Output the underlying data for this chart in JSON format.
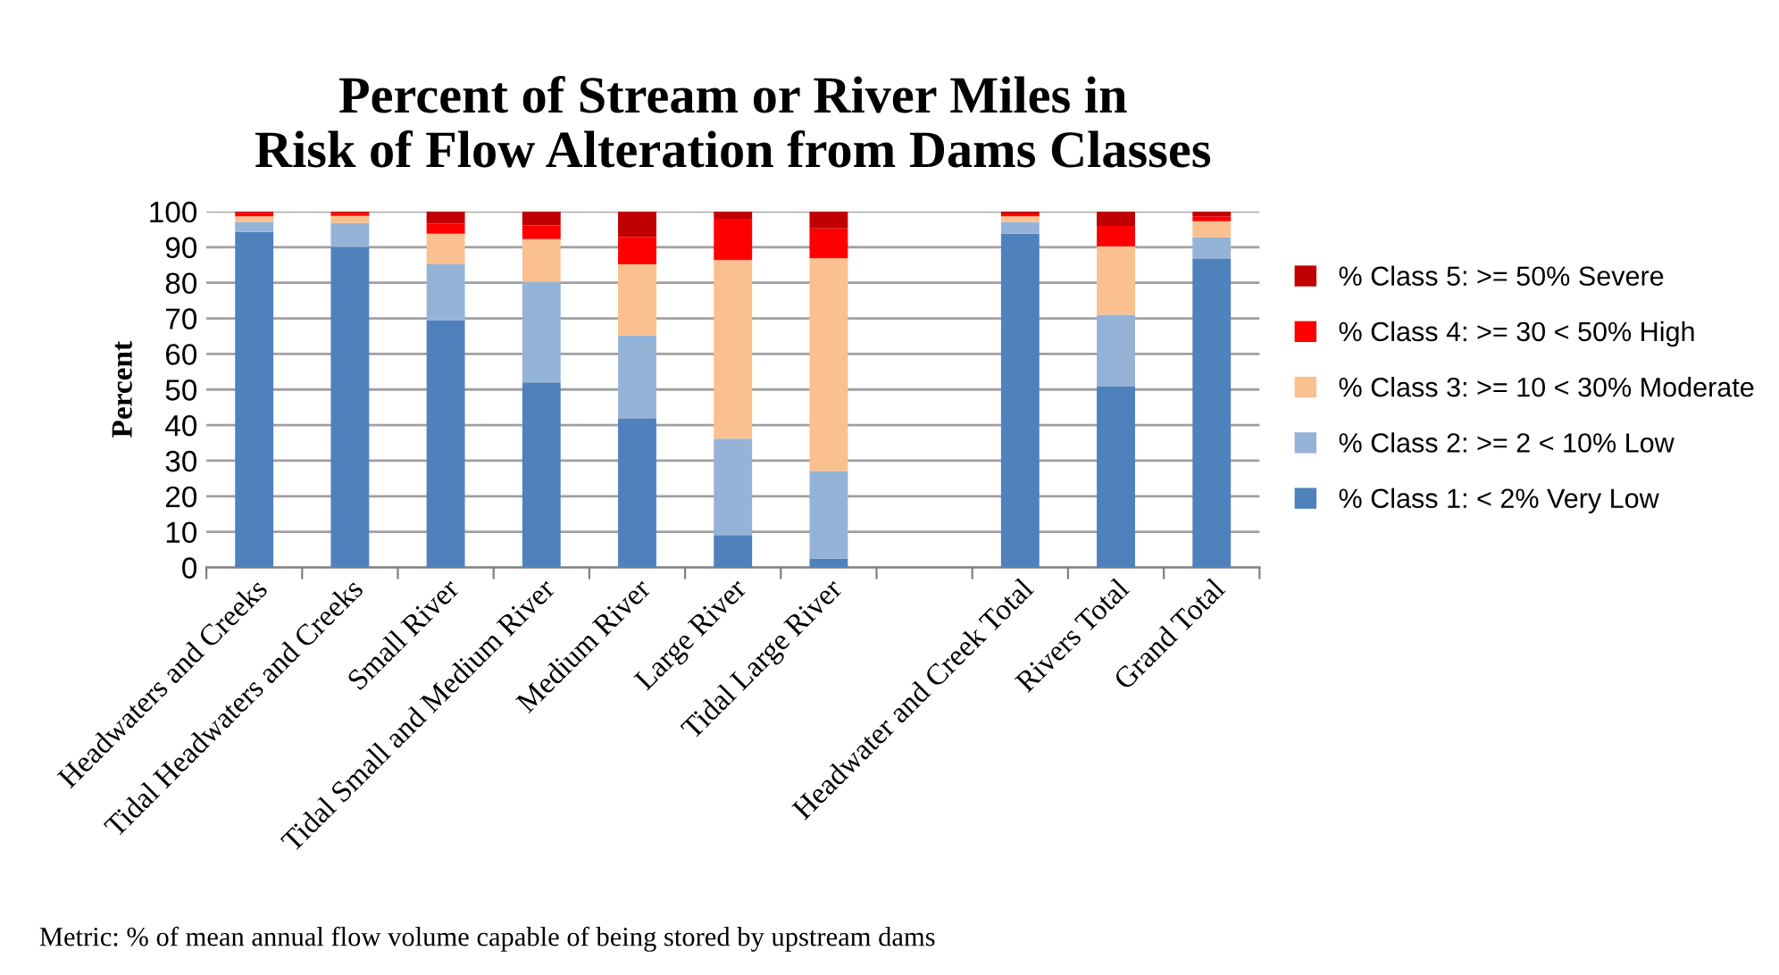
{
  "chart_data": {
    "type": "bar",
    "stacked": true,
    "title": "Percent of Stream or River Miles in\nRisk of Flow Alteration from Dams Classes",
    "ylabel": "Percent",
    "categories": [
      "Headwaters and Creeks",
      "Tidal Headwaters and Creeks",
      "Small River",
      "Tidal Small and Medium River",
      "Medium River",
      "Large River",
      "Tidal Large River",
      null,
      "Headwater and Creek Total",
      "Rivers Total",
      "Grand Total"
    ],
    "series": [
      {
        "name": "% Class 1: < 2% Very Low",
        "color": "#4f81bd",
        "values": [
          94.3,
          90.1,
          69.5,
          52.0,
          41.8,
          9.1,
          2.5,
          null,
          93.8,
          50.8,
          86.7
        ]
      },
      {
        "name": "% Class 2: >= 2 < 10% Low",
        "color": "#95b3d7",
        "values": [
          2.8,
          6.7,
          15.7,
          28.3,
          23.4,
          27.1,
          24.6,
          null,
          3.3,
          20.2,
          6.1
        ]
      },
      {
        "name": "% Class 3: >= 10 < 30% Moderate",
        "color": "#fac090",
        "values": [
          1.6,
          2.0,
          8.6,
          12.0,
          20.0,
          50.2,
          59.8,
          null,
          1.6,
          19.2,
          4.5
        ]
      },
      {
        "name": "% Class 4: >= 30 < 50% High",
        "color": "#ff0000",
        "values": [
          1.0,
          0.9,
          2.8,
          3.8,
          7.7,
          11.6,
          8.4,
          null,
          0.8,
          5.8,
          1.4
        ]
      },
      {
        "name": "% Class 5: >= 50% Severe",
        "color": "#c00000",
        "values": [
          0.3,
          0.3,
          3.4,
          3.9,
          7.1,
          2.0,
          4.7,
          null,
          0.5,
          4.0,
          1.3
        ]
      }
    ],
    "ylim": [
      0,
      100
    ],
    "yticks": [
      0,
      10,
      20,
      30,
      40,
      50,
      60,
      70,
      80,
      90,
      100
    ],
    "grid": "y",
    "legend": "right",
    "annotations": [
      "Metric: % of mean annual flow volume capable of being stored by upstream dams"
    ]
  }
}
